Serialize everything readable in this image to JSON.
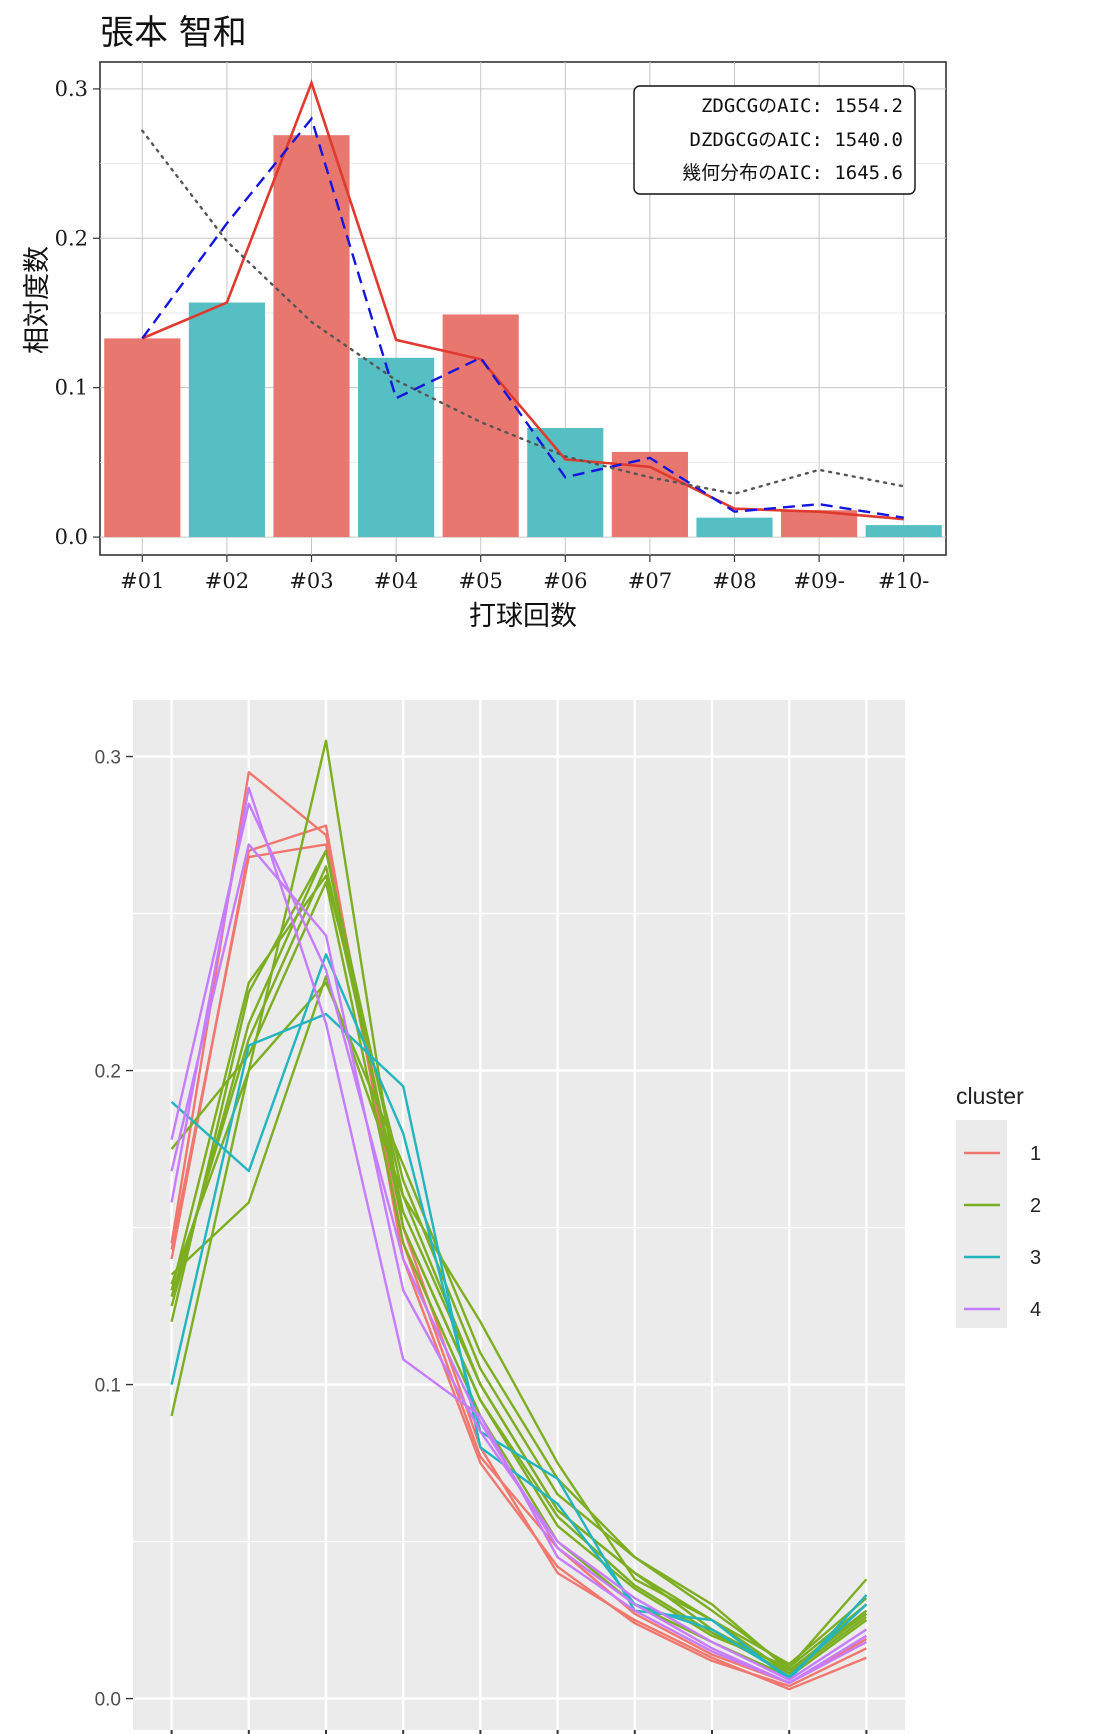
{
  "chart_data": [
    {
      "type": "bar",
      "title": "張本 智和",
      "xlabel": "打球回数",
      "ylabel": "相対度数",
      "categories": [
        "#01",
        "#02",
        "#03",
        "#04",
        "#05",
        "#06",
        "#07",
        "#08",
        "#09-",
        "#10-"
      ],
      "values": [
        0.133,
        0.157,
        0.269,
        0.12,
        0.149,
        0.073,
        0.057,
        0.013,
        0.018,
        0.008
      ],
      "bar_colors": [
        "#E8776F",
        "#56BFC4",
        "#E8776F",
        "#56BFC4",
        "#E8776F",
        "#56BFC4",
        "#E8776F",
        "#56BFC4",
        "#E8776F",
        "#56BFC4"
      ],
      "yticks": [
        "0.0",
        "0.1",
        "0.2",
        "0.3"
      ],
      "ylim": [
        -0.012,
        0.318
      ],
      "grid": true,
      "lines": [
        {
          "style": "solid",
          "color": "#E03A2F",
          "values": [
            0.133,
            0.157,
            0.304,
            0.132,
            0.119,
            0.052,
            0.047,
            0.019,
            0.017,
            0.012
          ]
        },
        {
          "style": "dashed",
          "color": "#1515E0",
          "values": [
            0.133,
            0.21,
            0.28,
            0.093,
            0.12,
            0.04,
            0.053,
            0.017,
            0.022,
            0.013
          ]
        },
        {
          "style": "dotted",
          "color": "#555555",
          "values": [
            0.272,
            0.198,
            0.144,
            0.105,
            0.077,
            0.054,
            0.04,
            0.029,
            0.045,
            0.034
          ]
        }
      ],
      "annotation": {
        "lines": [
          "ZDGCGのAIC: 1554.2",
          "DZDGCGのAIC: 1540.0",
          "幾何分布のAIC: 1645.6"
        ],
        "placement": "top-right"
      }
    },
    {
      "type": "line",
      "legend_title": "cluster",
      "legend_placement": "right",
      "yticks": [
        "0.0",
        "0.1",
        "0.2",
        "0.3"
      ],
      "ylim": [
        -0.01,
        0.318
      ],
      "grid": true,
      "x_count": 10,
      "series": [
        {
          "name": "1",
          "color": "#F0776E",
          "lines": [
            [
              0.145,
              0.295,
              0.275,
              0.15,
              0.08,
              0.04,
              0.025,
              0.013,
              0.003,
              0.013
            ],
            [
              0.14,
              0.27,
              0.278,
              0.14,
              0.075,
              0.042,
              0.024,
              0.012,
              0.004,
              0.016
            ],
            [
              0.143,
              0.268,
              0.272,
              0.145,
              0.077,
              0.048,
              0.027,
              0.014,
              0.005,
              0.019
            ]
          ]
        },
        {
          "name": "2",
          "color": "#7CAE21",
          "lines": [
            [
              0.09,
              0.2,
              0.305,
              0.15,
              0.095,
              0.055,
              0.035,
              0.02,
              0.01,
              0.038
            ],
            [
              0.12,
              0.225,
              0.27,
              0.16,
              0.1,
              0.06,
              0.04,
              0.025,
              0.008,
              0.03
            ],
            [
              0.13,
              0.228,
              0.262,
              0.165,
              0.105,
              0.065,
              0.045,
              0.03,
              0.009,
              0.028
            ],
            [
              0.135,
              0.158,
              0.23,
              0.16,
              0.12,
              0.075,
              0.038,
              0.025,
              0.011,
              0.032
            ],
            [
              0.175,
              0.205,
              0.26,
              0.145,
              0.09,
              0.05,
              0.03,
              0.018,
              0.007,
              0.025
            ],
            [
              0.128,
              0.21,
              0.265,
              0.155,
              0.1,
              0.06,
              0.04,
              0.022,
              0.009,
              0.027
            ],
            [
              0.132,
              0.2,
              0.228,
              0.17,
              0.11,
              0.07,
              0.045,
              0.028,
              0.01,
              0.03
            ],
            [
              0.125,
              0.215,
              0.27,
              0.15,
              0.095,
              0.058,
              0.036,
              0.021,
              0.008,
              0.026
            ]
          ]
        },
        {
          "name": "3",
          "color": "#22B5C0",
          "lines": [
            [
              0.19,
              0.168,
              0.237,
              0.18,
              0.085,
              0.07,
              0.028,
              0.025,
              0.006,
              0.033
            ],
            [
              0.1,
              0.208,
              0.218,
              0.195,
              0.08,
              0.062,
              0.03,
              0.022,
              0.007,
              0.03
            ]
          ]
        },
        {
          "name": "4",
          "color": "#C77CFF",
          "lines": [
            [
              0.158,
              0.29,
              0.215,
              0.108,
              0.09,
              0.045,
              0.028,
              0.015,
              0.005,
              0.02
            ],
            [
              0.168,
              0.272,
              0.243,
              0.13,
              0.085,
              0.05,
              0.032,
              0.018,
              0.006,
              0.022
            ],
            [
              0.178,
              0.285,
              0.232,
              0.14,
              0.088,
              0.048,
              0.03,
              0.016,
              0.005,
              0.018
            ]
          ]
        }
      ]
    }
  ]
}
